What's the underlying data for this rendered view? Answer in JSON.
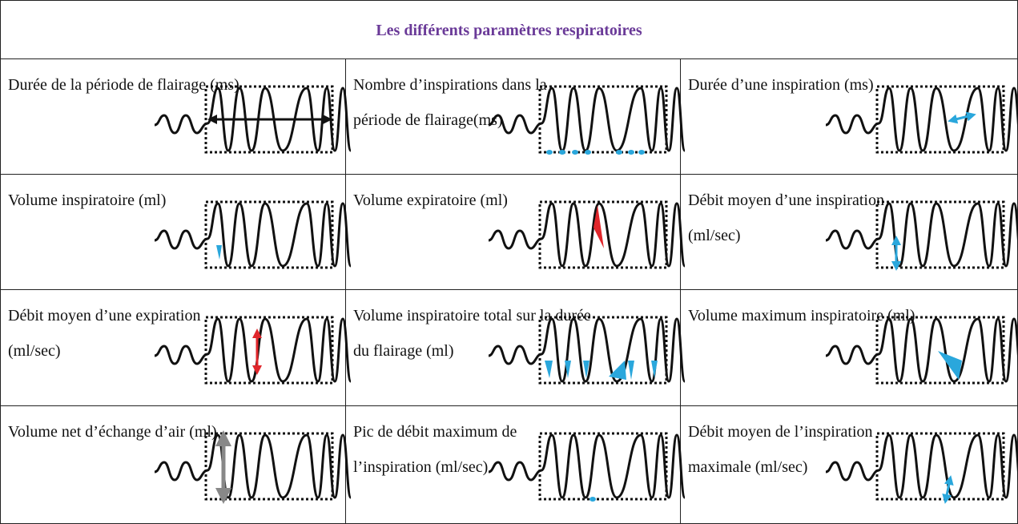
{
  "table": {
    "header": {
      "title": "Les différents paramètres respiratoires"
    },
    "rows": [
      [
        {
          "label": [
            "Durée de la période de flairage (ms)"
          ]
        },
        {
          "label": [
            "Nombre d’inspirations dans la",
            "période de flairage(ms)"
          ]
        },
        {
          "label": [
            "Durée d’une inspiration (ms)"
          ]
        }
      ],
      [
        {
          "label": [
            "Volume inspiratoire (ml)"
          ]
        },
        {
          "label": [
            "Volume expiratoire (ml)"
          ]
        },
        {
          "label": [
            "Débit moyen d’une inspiration",
            "(ml/sec)"
          ]
        }
      ],
      [
        {
          "label": [
            "Débit moyen d’une expiration",
            "(ml/sec)"
          ]
        },
        {
          "label": [
            "Volume inspiratoire total sur la durée",
            "du flairage (ml)"
          ]
        },
        {
          "label": [
            "Volume maximum inspiratoire (ml)"
          ]
        }
      ],
      [
        {
          "label": [
            "Volume net d’échange d’air (ml)"
          ]
        },
        {
          "label": [
            "Pic de débit maximum de",
            "l’inspiration (ml/sec)"
          ]
        },
        {
          "label": [
            "Débit moyen de l’inspiration",
            "maximale (ml/sec)"
          ]
        }
      ]
    ]
  }
}
